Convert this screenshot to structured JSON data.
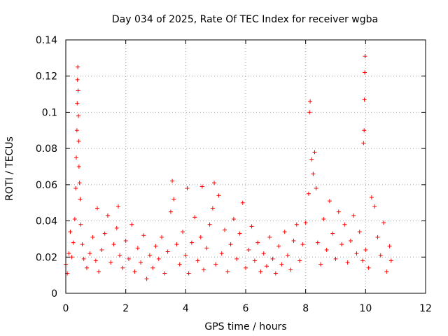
{
  "chart_data": {
    "type": "scatter",
    "title": "Day 034 of 2025, Rate Of TEC Index for receiver wgba",
    "xlabel": "GPS time / hours",
    "ylabel": "ROTI / TECUs",
    "xlim": [
      0,
      12
    ],
    "ylim": [
      0,
      0.14
    ],
    "x_ticks": [
      0,
      2,
      4,
      6,
      8,
      10,
      12
    ],
    "y_ticks": [
      0,
      0.02,
      0.04,
      0.06,
      0.08,
      0.1,
      0.12,
      0.14
    ],
    "x_tick_labels": [
      "0",
      "2",
      "4",
      "6",
      "8",
      "10",
      "12"
    ],
    "y_tick_labels": [
      "0",
      "0.02",
      "0.04",
      "0.06",
      "0.08",
      "0.1",
      "0.12",
      "0.14"
    ],
    "grid": true,
    "marker": "+",
    "color": "#ff0000",
    "series": [
      {
        "name": "ROTI",
        "points": [
          [
            0.0,
            0.016
          ],
          [
            0.05,
            0.011
          ],
          [
            0.1,
            0.022
          ],
          [
            0.15,
            0.034
          ],
          [
            0.2,
            0.02
          ],
          [
            0.25,
            0.028
          ],
          [
            0.3,
            0.041
          ],
          [
            0.33,
            0.058
          ],
          [
            0.35,
            0.075
          ],
          [
            0.37,
            0.09
          ],
          [
            0.38,
            0.105
          ],
          [
            0.39,
            0.118
          ],
          [
            0.4,
            0.125
          ],
          [
            0.41,
            0.112
          ],
          [
            0.42,
            0.098
          ],
          [
            0.43,
            0.084
          ],
          [
            0.44,
            0.07
          ],
          [
            0.46,
            0.061
          ],
          [
            0.48,
            0.052
          ],
          [
            0.5,
            0.038
          ],
          [
            0.55,
            0.027
          ],
          [
            0.6,
            0.019
          ],
          [
            0.7,
            0.014
          ],
          [
            0.8,
            0.022
          ],
          [
            0.9,
            0.031
          ],
          [
            1.0,
            0.018
          ],
          [
            1.05,
            0.047
          ],
          [
            1.1,
            0.012
          ],
          [
            1.2,
            0.024
          ],
          [
            1.3,
            0.033
          ],
          [
            1.4,
            0.043
          ],
          [
            1.5,
            0.017
          ],
          [
            1.6,
            0.027
          ],
          [
            1.7,
            0.036
          ],
          [
            1.75,
            0.048
          ],
          [
            1.8,
            0.021
          ],
          [
            1.9,
            0.014
          ],
          [
            2.0,
            0.029
          ],
          [
            2.1,
            0.019
          ],
          [
            2.2,
            0.038
          ],
          [
            2.3,
            0.012
          ],
          [
            2.4,
            0.025
          ],
          [
            2.5,
            0.017
          ],
          [
            2.6,
            0.032
          ],
          [
            2.7,
            0.008
          ],
          [
            2.8,
            0.021
          ],
          [
            2.9,
            0.014
          ],
          [
            3.0,
            0.026
          ],
          [
            3.1,
            0.019
          ],
          [
            3.2,
            0.031
          ],
          [
            3.3,
            0.011
          ],
          [
            3.4,
            0.023
          ],
          [
            3.5,
            0.045
          ],
          [
            3.55,
            0.062
          ],
          [
            3.6,
            0.052
          ],
          [
            3.7,
            0.027
          ],
          [
            3.8,
            0.016
          ],
          [
            3.9,
            0.034
          ],
          [
            4.0,
            0.021
          ],
          [
            4.05,
            0.058
          ],
          [
            4.1,
            0.011
          ],
          [
            4.2,
            0.028
          ],
          [
            4.3,
            0.042
          ],
          [
            4.4,
            0.018
          ],
          [
            4.5,
            0.031
          ],
          [
            4.55,
            0.059
          ],
          [
            4.6,
            0.013
          ],
          [
            4.7,
            0.025
          ],
          [
            4.8,
            0.038
          ],
          [
            4.9,
            0.047
          ],
          [
            4.95,
            0.061
          ],
          [
            5.0,
            0.016
          ],
          [
            5.1,
            0.054
          ],
          [
            5.2,
            0.022
          ],
          [
            5.3,
            0.035
          ],
          [
            5.4,
            0.012
          ],
          [
            5.5,
            0.027
          ],
          [
            5.6,
            0.041
          ],
          [
            5.7,
            0.019
          ],
          [
            5.8,
            0.033
          ],
          [
            5.9,
            0.05
          ],
          [
            6.0,
            0.014
          ],
          [
            6.1,
            0.024
          ],
          [
            6.2,
            0.037
          ],
          [
            6.3,
            0.018
          ],
          [
            6.4,
            0.028
          ],
          [
            6.5,
            0.012
          ],
          [
            6.6,
            0.022
          ],
          [
            6.7,
            0.015
          ],
          [
            6.8,
            0.031
          ],
          [
            6.9,
            0.019
          ],
          [
            7.0,
            0.011
          ],
          [
            7.1,
            0.026
          ],
          [
            7.2,
            0.016
          ],
          [
            7.3,
            0.034
          ],
          [
            7.4,
            0.021
          ],
          [
            7.5,
            0.013
          ],
          [
            7.6,
            0.029
          ],
          [
            7.7,
            0.038
          ],
          [
            7.8,
            0.018
          ],
          [
            7.9,
            0.027
          ],
          [
            8.0,
            0.039
          ],
          [
            8.1,
            0.055
          ],
          [
            8.13,
            0.1
          ],
          [
            8.15,
            0.106
          ],
          [
            8.2,
            0.074
          ],
          [
            8.25,
            0.066
          ],
          [
            8.3,
            0.078
          ],
          [
            8.35,
            0.058
          ],
          [
            8.4,
            0.028
          ],
          [
            8.5,
            0.016
          ],
          [
            8.6,
            0.041
          ],
          [
            8.7,
            0.024
          ],
          [
            8.8,
            0.051
          ],
          [
            8.9,
            0.033
          ],
          [
            9.0,
            0.019
          ],
          [
            9.1,
            0.045
          ],
          [
            9.2,
            0.027
          ],
          [
            9.3,
            0.038
          ],
          [
            9.4,
            0.017
          ],
          [
            9.5,
            0.029
          ],
          [
            9.6,
            0.043
          ],
          [
            9.7,
            0.022
          ],
          [
            9.8,
            0.034
          ],
          [
            9.9,
            0.018
          ],
          [
            9.93,
            0.083
          ],
          [
            9.95,
            0.09
          ],
          [
            9.96,
            0.107
          ],
          [
            9.97,
            0.122
          ],
          [
            9.98,
            0.131
          ],
          [
            10.0,
            0.024
          ],
          [
            10.1,
            0.014
          ],
          [
            10.2,
            0.053
          ],
          [
            10.3,
            0.048
          ],
          [
            10.4,
            0.031
          ],
          [
            10.5,
            0.021
          ],
          [
            10.6,
            0.039
          ],
          [
            10.7,
            0.012
          ],
          [
            10.8,
            0.026
          ],
          [
            10.85,
            0.018
          ]
        ]
      }
    ]
  }
}
